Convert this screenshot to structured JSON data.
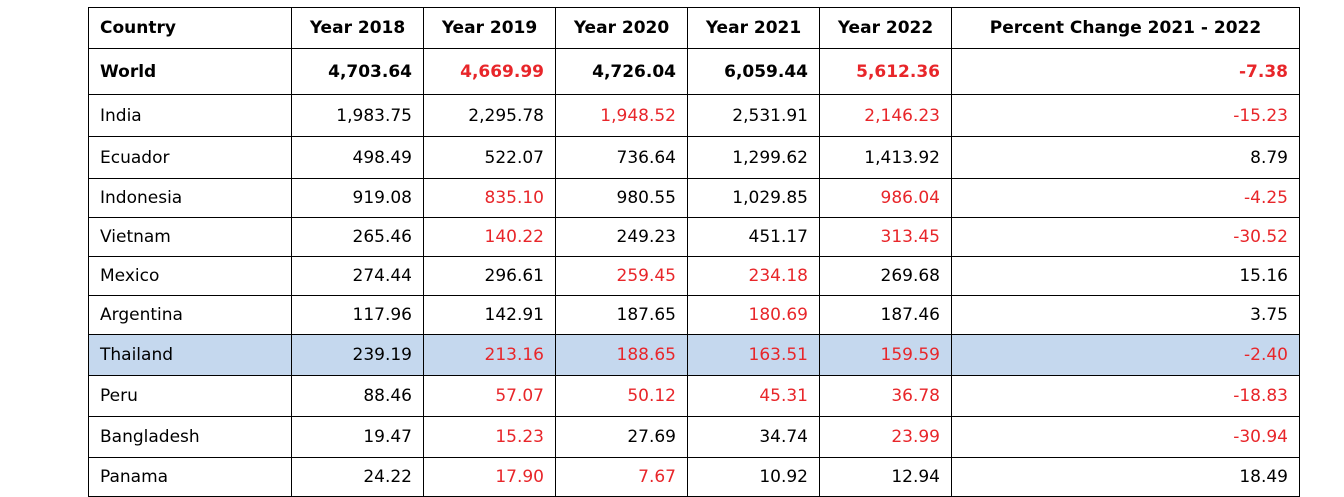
{
  "table": {
    "headers": [
      "Country",
      "Year 2018",
      "Year 2019",
      "Year 2020",
      "Year 2021",
      "Year 2022",
      "Percent Change 2021 - 2022"
    ],
    "rows": [
      {
        "country": "World",
        "values": [
          "4,703.64",
          "4,669.99",
          "4,726.04",
          "6,059.44",
          "5,612.36",
          "-7.38"
        ]
      },
      {
        "country": "India",
        "values": [
          "1,983.75",
          "2,295.78",
          "1,948.52",
          "2,531.91",
          "2,146.23",
          "-15.23"
        ]
      },
      {
        "country": "Ecuador",
        "values": [
          "498.49",
          "522.07",
          "736.64",
          "1,299.62",
          "1,413.92",
          "8.79"
        ]
      },
      {
        "country": "Indonesia",
        "values": [
          "919.08",
          "835.10",
          "980.55",
          "1,029.85",
          "986.04",
          "-4.25"
        ]
      },
      {
        "country": "Vietnam",
        "values": [
          "265.46",
          "140.22",
          "249.23",
          "451.17",
          "313.45",
          "-30.52"
        ]
      },
      {
        "country": "Mexico",
        "values": [
          "274.44",
          "296.61",
          "259.45",
          "234.18",
          "269.68",
          "15.16"
        ]
      },
      {
        "country": "Argentina",
        "values": [
          "117.96",
          "142.91",
          "187.65",
          "180.69",
          "187.46",
          "3.75"
        ]
      },
      {
        "country": "Thailand",
        "values": [
          "239.19",
          "213.16",
          "188.65",
          "163.51",
          "159.59",
          "-2.40"
        ]
      },
      {
        "country": "Peru",
        "values": [
          "88.46",
          "57.07",
          "50.12",
          "45.31",
          "36.78",
          "-18.83"
        ]
      },
      {
        "country": "Bangladesh",
        "values": [
          "19.47",
          "15.23",
          "27.69",
          "34.74",
          "23.99",
          "-30.94"
        ]
      },
      {
        "country": "Panama",
        "values": [
          "24.22",
          "17.90",
          "7.67",
          "10.92",
          "12.94",
          "18.49"
        ]
      }
    ]
  },
  "colors": {
    "decline_text": "#e8262a",
    "highlight_row_background": "#c5d8ee"
  }
}
